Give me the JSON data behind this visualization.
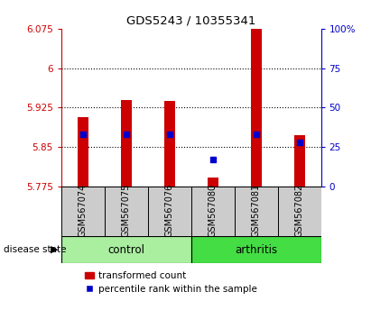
{
  "title": "GDS5243 / 10355341",
  "samples": [
    "GSM567074",
    "GSM567075",
    "GSM567076",
    "GSM567080",
    "GSM567081",
    "GSM567082"
  ],
  "groups": [
    "control",
    "control",
    "control",
    "arthritis",
    "arthritis",
    "arthritis"
  ],
  "bar_tops": [
    5.907,
    5.94,
    5.938,
    5.793,
    6.075,
    5.872
  ],
  "bar_bottom": 5.775,
  "percentile_values": [
    33,
    33,
    33,
    17,
    33,
    28
  ],
  "ylim_left": [
    5.775,
    6.075
  ],
  "ylim_right": [
    0,
    100
  ],
  "yticks_left": [
    5.775,
    5.85,
    5.925,
    6.0,
    6.075
  ],
  "yticks_right": [
    0,
    25,
    50,
    75,
    100
  ],
  "ytick_labels_left": [
    "5.775",
    "5.85",
    "5.925",
    "6",
    "6.075"
  ],
  "ytick_labels_right": [
    "0",
    "25",
    "50",
    "75",
    "100%"
  ],
  "bar_color": "#cc0000",
  "dot_color": "#0000cc",
  "control_color": "#aaeea0",
  "arthritis_color": "#44dd44",
  "group_label_text": "disease state",
  "legend_bar_label": "transformed count",
  "legend_dot_label": "percentile rank within the sample",
  "label_area_bg": "#cccccc"
}
